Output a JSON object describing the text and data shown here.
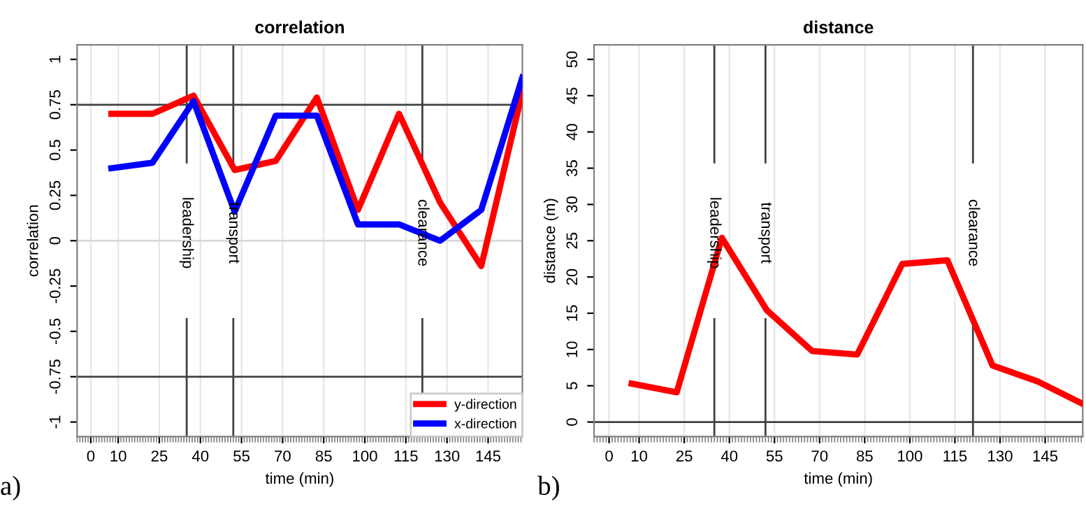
{
  "chart_data": [
    {
      "type": "line",
      "title": "correlation",
      "xlabel": "time (min)",
      "ylabel": "correlation",
      "x": [
        7.5,
        22.5,
        37.5,
        52.5,
        67.5,
        82.5,
        97.5,
        112.5,
        127.5,
        142.5,
        157.5
      ],
      "series": [
        {
          "name": "y-direction",
          "color": "#ff0000",
          "values": [
            0.7,
            0.7,
            0.8,
            0.39,
            0.44,
            0.79,
            0.17,
            0.7,
            0.21,
            -0.14,
            0.82
          ]
        },
        {
          "name": "x-direction",
          "color": "#0000ff",
          "values": [
            0.4,
            0.43,
            0.77,
            0.16,
            0.69,
            0.69,
            0.09,
            0.09,
            0.0,
            0.17,
            0.9
          ]
        }
      ],
      "xlim": [
        -5,
        157.5
      ],
      "xticks": [
        0,
        10,
        25,
        40,
        55,
        70,
        85,
        100,
        115,
        130,
        145
      ],
      "ylim": [
        -1.08,
        1.08
      ],
      "yticks": [
        {
          "value": 1,
          "label": "1"
        },
        {
          "value": 0.75,
          "label": "0.75"
        },
        {
          "value": 0.5,
          "label": "0.5"
        },
        {
          "value": 0.25,
          "label": "0.25"
        },
        {
          "value": 0,
          "label": "0"
        },
        {
          "value": -0.25,
          "label": "-0.25"
        },
        {
          "value": -0.5,
          "label": "-0.5"
        },
        {
          "value": -0.75,
          "label": "-0.75"
        },
        {
          "value": -1,
          "label": "-1"
        }
      ],
      "ref_lines": [
        {
          "axis": "y",
          "value": 0.75,
          "color": "#404040"
        },
        {
          "axis": "y",
          "value": -0.75,
          "color": "#404040"
        },
        {
          "axis": "y",
          "value": 0,
          "color": "#d9d9d9"
        },
        {
          "axis": "x",
          "value": 35,
          "label": "leadership",
          "color": "#404040"
        },
        {
          "axis": "x",
          "value": 52,
          "label": "transport",
          "color": "#404040"
        },
        {
          "axis": "x",
          "value": 121,
          "label": "clearance",
          "color": "#404040"
        }
      ],
      "annotations": [
        "a)"
      ],
      "grid": "x",
      "legend": "bottom right"
    },
    {
      "type": "line",
      "title": "distance",
      "xlabel": "time (min)",
      "ylabel": "distance (m)",
      "x": [
        7.5,
        22.5,
        37.5,
        52.5,
        67.5,
        82.5,
        97.5,
        112.5,
        127.5,
        142.5,
        157.5
      ],
      "series": [
        {
          "color": "#ff0000",
          "values": [
            5.3,
            4.1,
            25.4,
            15.4,
            9.8,
            9.3,
            21.8,
            22.3,
            7.8,
            5.6,
            2.5
          ]
        }
      ],
      "xlim": [
        -5,
        157.5
      ],
      "xticks": [
        0,
        10,
        25,
        40,
        55,
        70,
        85,
        100,
        115,
        130,
        145
      ],
      "ylim": [
        -2,
        52
      ],
      "yticks": [
        0,
        5,
        10,
        15,
        20,
        25,
        30,
        35,
        40,
        45,
        50
      ],
      "ref_lines": [
        {
          "axis": "y",
          "value": 0,
          "color": "#404040"
        },
        {
          "axis": "x",
          "value": 35,
          "label": "leadership",
          "color": "#404040"
        },
        {
          "axis": "x",
          "value": 52,
          "label": "transport",
          "color": "#404040"
        },
        {
          "axis": "x",
          "value": 121,
          "label": "clearance",
          "color": "#404040"
        }
      ],
      "annotations": [
        "b)"
      ],
      "grid": "x"
    }
  ]
}
